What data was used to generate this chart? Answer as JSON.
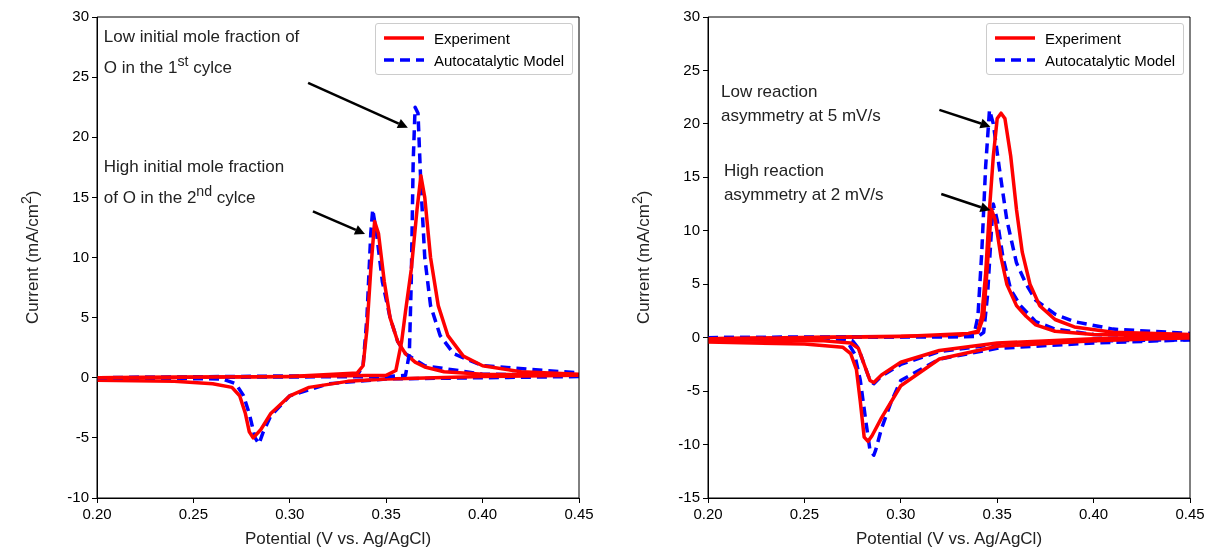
{
  "chart_data": [
    {
      "type": "line",
      "xlabel": "Potential (V vs. Ag/AgCl)",
      "ylabel": "Current (mA/cm$^{2}$)",
      "xlim": [
        0.2,
        0.45
      ],
      "ylim": [
        -10,
        30
      ],
      "xticks": [
        {
          "value": 0.2,
          "label": "0.20"
        },
        {
          "value": 0.25,
          "label": "0.25"
        },
        {
          "value": 0.3,
          "label": "0.30"
        },
        {
          "value": 0.35,
          "label": "0.35"
        },
        {
          "value": 0.4,
          "label": "0.40"
        },
        {
          "value": 0.45,
          "label": "0.45"
        }
      ],
      "yticks": [
        -10,
        -5,
        0,
        5,
        10,
        15,
        20,
        25,
        30
      ],
      "grid": false,
      "legend": "top right",
      "marker": "none",
      "annotations": [
        "Low initial mole fraction of O in the 1$^{st}$ cylce",
        "High initial mole fraction of O in the 2$^{nd}$ cylce"
      ],
      "series": [
        {
          "name": "Experiment",
          "color": "#ff0000",
          "line_style": "solid",
          "x": [
            0.2,
            0.3,
            0.35,
            0.355,
            0.358,
            0.36,
            0.363,
            0.366,
            0.368,
            0.37,
            0.373,
            0.377,
            0.382,
            0.39,
            0.4,
            0.42,
            0.45
          ],
          "values": [
            0,
            0.1,
            0.2,
            0.6,
            3,
            5.5,
            9,
            14,
            16.8,
            15,
            10,
            6,
            3.5,
            1.8,
            1,
            0.5,
            0.3
          ]
        },
        {
          "name": "Autocatalytic Model",
          "color": "#0000ff",
          "line_style": "dashed",
          "x": [
            0.2,
            0.35,
            0.36,
            0.362,
            0.363,
            0.364,
            0.365,
            0.3665,
            0.368,
            0.37,
            0.373,
            0.378,
            0.385,
            0.4,
            0.45
          ],
          "values": [
            0,
            0.1,
            0.2,
            2,
            8,
            18,
            22.5,
            22,
            16,
            10,
            6,
            3.5,
            2,
            1,
            0.4
          ]
        },
        {
          "color": "#ff0000",
          "line_style": "solid",
          "x": [
            0.2,
            0.3,
            0.335,
            0.338,
            0.34,
            0.342,
            0.344,
            0.346,
            0.349,
            0.352,
            0.356,
            0.36,
            0.365,
            0.37,
            0.38,
            0.4,
            0.45
          ],
          "values": [
            0,
            0.1,
            0.4,
            1,
            4,
            9,
            13,
            12,
            8,
            5,
            3,
            2,
            1.3,
            0.9,
            0.5,
            0.3,
            0.2
          ]
        },
        {
          "color": "#ff0000",
          "line_style": "solid",
          "x": [
            0.2,
            0.24,
            0.26,
            0.27,
            0.274,
            0.277,
            0.279,
            0.281,
            0.285,
            0.29,
            0.3,
            0.31,
            0.33,
            0.35,
            0.4,
            0.45
          ],
          "values": [
            -0.2,
            -0.3,
            -0.5,
            -0.8,
            -1.5,
            -3,
            -4.5,
            -5,
            -4.3,
            -3,
            -1.5,
            -0.8,
            -0.3,
            -0.1,
            0.1,
            0.2
          ]
        },
        {
          "color": "#0000ff",
          "line_style": "dashed",
          "x": [
            0.2,
            0.335,
            0.338,
            0.34,
            0.342,
            0.343,
            0.345,
            0.348,
            0.352,
            0.356,
            0.36,
            0.37,
            0.4,
            0.45
          ],
          "values": [
            0,
            0.2,
            1,
            5,
            12,
            14,
            12,
            8,
            5,
            3,
            2,
            1,
            0.3,
            0.2
          ]
        },
        {
          "color": "#0000ff",
          "line_style": "dashed",
          "x": [
            0.2,
            0.265,
            0.272,
            0.276,
            0.279,
            0.282,
            0.284,
            0.286,
            0.29,
            0.3,
            0.32,
            0.35,
            0.4,
            0.45
          ],
          "values": [
            0,
            -0.1,
            -0.5,
            -1.5,
            -3,
            -5,
            -5.5,
            -4.6,
            -3.2,
            -1.5,
            -0.5,
            -0.1,
            0,
            0.1
          ]
        }
      ]
    },
    {
      "type": "line",
      "xlabel": "Potential (V vs. Ag/AgCl)",
      "ylabel": "Current (mA/cm$^{2}$)",
      "xlim": [
        0.2,
        0.45
      ],
      "ylim": [
        -15,
        30
      ],
      "xticks": [
        {
          "value": 0.2,
          "label": "0.20"
        },
        {
          "value": 0.25,
          "label": "0.25"
        },
        {
          "value": 0.3,
          "label": "0.30"
        },
        {
          "value": 0.35,
          "label": "0.35"
        },
        {
          "value": 0.4,
          "label": "0.40"
        },
        {
          "value": 0.45,
          "label": "0.45"
        }
      ],
      "yticks": [
        -15,
        -10,
        -5,
        0,
        5,
        10,
        15,
        20,
        25,
        30
      ],
      "grid": false,
      "legend": "top right",
      "marker": "none",
      "annotations": [
        "Low reaction asymmetry at 5 mV/s",
        "High reaction asymmetry at 2 mV/s"
      ],
      "series": [
        {
          "name": "Experiment",
          "color": "#ff0000",
          "line_style": "solid",
          "x": [
            0.2,
            0.3,
            0.335,
            0.34,
            0.342,
            0.344,
            0.346,
            0.348,
            0.35,
            0.352,
            0.354,
            0.357,
            0.36,
            0.363,
            0.367,
            0.372,
            0.38,
            0.39,
            0.41,
            0.45
          ],
          "values": [
            -0.1,
            0.1,
            0.4,
            0.6,
            2,
            6,
            12,
            17,
            20.5,
            21,
            20.5,
            17,
            12,
            8,
            5,
            3,
            1.7,
            1,
            0.5,
            0.3
          ]
        },
        {
          "name": "Autocatalytic Model",
          "color": "#0000ff",
          "line_style": "dashed",
          "x": [
            0.2,
            0.33,
            0.338,
            0.34,
            0.342,
            0.344,
            0.346,
            0.348,
            0.351,
            0.355,
            0.36,
            0.365,
            0.37,
            0.38,
            0.39,
            0.41,
            0.45
          ],
          "values": [
            0,
            0.1,
            0.3,
            2,
            8,
            16,
            21.3,
            20,
            16,
            11,
            7,
            5,
            3.5,
            2.2,
            1.5,
            0.8,
            0.4
          ]
        },
        {
          "color": "#ff0000",
          "line_style": "solid",
          "x": [
            0.2,
            0.25,
            0.27,
            0.274,
            0.277,
            0.279,
            0.281,
            0.283,
            0.285,
            0.29,
            0.3,
            0.32,
            0.35,
            0.4,
            0.45
          ],
          "values": [
            -0.4,
            -0.6,
            -0.9,
            -1.5,
            -3,
            -6,
            -9.3,
            -9.7,
            -9.2,
            -7.5,
            -4.5,
            -2,
            -0.8,
            -0.3,
            0
          ]
        },
        {
          "color": "#ff0000",
          "line_style": "solid",
          "x": [
            0.2,
            0.33,
            0.34,
            0.343,
            0.345,
            0.347,
            0.349,
            0.352,
            0.355,
            0.36,
            0.365,
            0.37,
            0.38,
            0.4,
            0.45
          ],
          "values": [
            -0.1,
            0.2,
            0.5,
            2,
            7,
            12,
            11,
            7.5,
            5,
            3,
            2,
            1.2,
            0.6,
            0.3,
            0.1
          ]
        },
        {
          "color": "#ff0000",
          "line_style": "solid",
          "x": [
            0.2,
            0.26,
            0.274,
            0.278,
            0.281,
            0.284,
            0.286,
            0.29,
            0.3,
            0.32,
            0.35,
            0.4,
            0.45
          ],
          "values": [
            -0.2,
            -0.3,
            -0.5,
            -1,
            -2.5,
            -4,
            -4.2,
            -3.5,
            -2.3,
            -1.2,
            -0.5,
            -0.1,
            0
          ]
        },
        {
          "color": "#0000ff",
          "line_style": "dashed",
          "x": [
            0.2,
            0.26,
            0.272,
            0.276,
            0.279,
            0.282,
            0.284,
            0.286,
            0.287,
            0.29,
            0.295,
            0.3,
            0.32,
            0.35,
            0.4,
            0.45
          ],
          "values": [
            0,
            0,
            -0.3,
            -1.5,
            -4,
            -8,
            -10.5,
            -11,
            -10.5,
            -8.5,
            -6,
            -4,
            -2,
            -1,
            -0.5,
            -0.2
          ]
        },
        {
          "color": "#0000ff",
          "line_style": "dashed",
          "x": [
            0.2,
            0.34,
            0.343,
            0.345,
            0.347,
            0.348,
            0.35,
            0.353,
            0.357,
            0.362,
            0.37,
            0.38,
            0.4,
            0.45
          ],
          "values": [
            0,
            0.1,
            0.5,
            4,
            10,
            12.5,
            11,
            7.5,
            4.5,
            3,
            1.5,
            0.8,
            0.3,
            0.1
          ]
        },
        {
          "color": "#0000ff",
          "line_style": "dashed",
          "x": [
            0.2,
            0.27,
            0.275,
            0.278,
            0.281,
            0.284,
            0.286,
            0.29,
            0.3,
            0.32,
            0.35,
            0.4,
            0.45
          ],
          "values": [
            0,
            0,
            -0.3,
            -1,
            -2.5,
            -4,
            -4.3,
            -3.6,
            -2.5,
            -1.3,
            -0.6,
            -0.3,
            -0.2
          ]
        }
      ]
    }
  ]
}
